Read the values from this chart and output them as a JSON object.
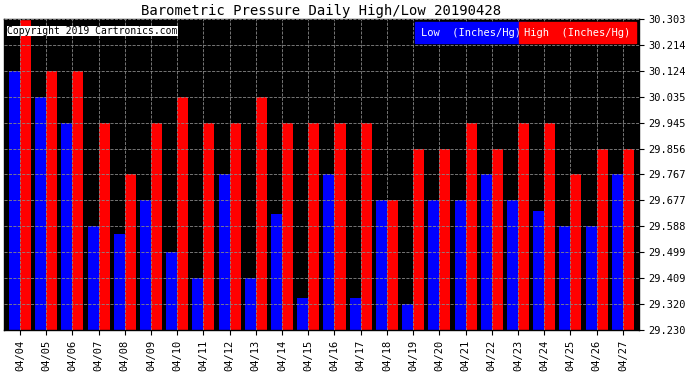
{
  "title": "Barometric Pressure Daily High/Low 20190428",
  "copyright": "Copyright 2019 Cartronics.com",
  "dates": [
    "04/04",
    "04/05",
    "04/06",
    "04/07",
    "04/08",
    "04/09",
    "04/10",
    "04/11",
    "04/12",
    "04/13",
    "04/14",
    "04/15",
    "04/16",
    "04/17",
    "04/18",
    "04/19",
    "04/20",
    "04/21",
    "04/22",
    "04/23",
    "04/24",
    "04/25",
    "04/26",
    "04/27"
  ],
  "low_values": [
    30.124,
    30.035,
    29.945,
    29.588,
    29.56,
    29.677,
    29.499,
    29.409,
    29.767,
    29.409,
    29.63,
    29.34,
    29.767,
    29.34,
    29.677,
    29.32,
    29.677,
    29.677,
    29.767,
    29.677,
    29.64,
    29.588,
    29.588,
    29.767
  ],
  "high_values": [
    30.303,
    30.124,
    30.124,
    29.945,
    29.767,
    29.945,
    30.035,
    29.945,
    29.945,
    30.035,
    29.945,
    29.945,
    29.945,
    29.945,
    29.677,
    29.856,
    29.856,
    29.945,
    29.856,
    29.945,
    29.945,
    29.767,
    29.856,
    29.856
  ],
  "ylim_min": 29.23,
  "ylim_max": 30.303,
  "yticks": [
    29.23,
    29.32,
    29.409,
    29.499,
    29.588,
    29.677,
    29.767,
    29.856,
    29.945,
    30.035,
    30.124,
    30.214,
    30.303
  ],
  "low_color": "#0000ff",
  "high_color": "#ff0000",
  "plot_bg_color": "#000000",
  "fig_bg_color": "#ffffff",
  "grid_color": "#888888",
  "bar_width": 0.42,
  "legend_low_label": "Low  (Inches/Hg)",
  "legend_high_label": "High  (Inches/Hg)",
  "title_fontsize": 10,
  "tick_fontsize": 7.5,
  "copyright_fontsize": 7
}
